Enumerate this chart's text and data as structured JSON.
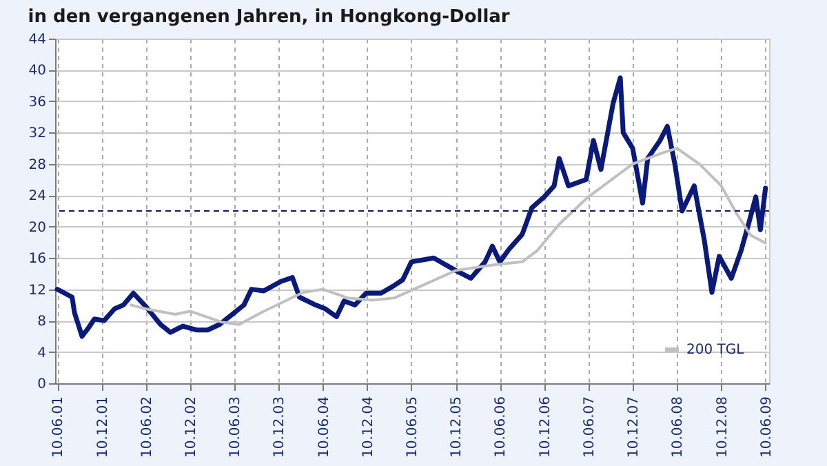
{
  "chart_data": {
    "type": "line",
    "title": "in den vergangenen Jahren, in Hongkong-Dollar",
    "series": [
      {
        "color": "#0a1a7a",
        "x": [
          "2001-06-10",
          "2001-08-10",
          "2001-08-20",
          "2001-09-20",
          "2001-10-15",
          "2001-11-10",
          "2001-12-20",
          "2002-02-01",
          "2002-03-10",
          "2002-04-20",
          "2002-06-10",
          "2002-08-10",
          "2002-09-20",
          "2002-11-10",
          "2003-01-05",
          "2003-02-20",
          "2003-04-10",
          "2003-06-10",
          "2003-07-20",
          "2003-08-20",
          "2003-10-10",
          "2003-12-20",
          "2004-02-05",
          "2004-03-05",
          "2004-05-10",
          "2004-06-20",
          "2004-08-05",
          "2004-09-05",
          "2004-10-20",
          "2004-12-05",
          "2005-02-05",
          "2005-04-01",
          "2005-05-05",
          "2005-06-10",
          "2005-09-10",
          "2005-12-10",
          "2006-02-10",
          "2006-04-10",
          "2006-05-10",
          "2006-06-10",
          "2006-07-20",
          "2006-09-10",
          "2006-10-20",
          "2006-12-10",
          "2007-01-20",
          "2007-02-10",
          "2007-03-20",
          "2007-06-01",
          "2007-07-01",
          "2007-08-01",
          "2007-09-20",
          "2007-10-20",
          "2007-11-01",
          "2007-12-10",
          "2008-01-20",
          "2008-02-10",
          "2008-04-01",
          "2008-05-01",
          "2008-06-01",
          "2008-07-01",
          "2008-08-20",
          "2008-10-01",
          "2008-11-01",
          "2008-12-01",
          "2009-01-20",
          "2009-03-01",
          "2009-04-01",
          "2009-05-01",
          "2009-05-20",
          "2009-06-10"
        ],
        "values": [
          12,
          11,
          9,
          6,
          7,
          8.2,
          8,
          9.5,
          10,
          11.5,
          9.8,
          7.5,
          6.5,
          7.3,
          6.8,
          6.8,
          7.5,
          9,
          10,
          12,
          11.8,
          13,
          13.5,
          11,
          10,
          9.5,
          8.5,
          10.5,
          10,
          11.5,
          11.5,
          12.5,
          13.2,
          15.5,
          16,
          14.4,
          13.4,
          15.5,
          17.5,
          15.5,
          17.2,
          19,
          22.4,
          23.8,
          25.2,
          28.7,
          25.2,
          26,
          31,
          27.3,
          35.7,
          39,
          32,
          30,
          23,
          28.7,
          31,
          32.8,
          28,
          22,
          25.2,
          18.2,
          11.6,
          16.2,
          13.4,
          16.9,
          20.3,
          23.8,
          19.6,
          24.9
        ]
      },
      {
        "name": "200 TGL",
        "color": "#c0c0c0",
        "x": [
          "2002-04-10",
          "2002-06-10",
          "2002-10-10",
          "2002-12-10",
          "2003-04-20",
          "2003-06-30",
          "2003-10-10",
          "2004-03-20",
          "2004-06-10",
          "2004-09-20",
          "2005-01-01",
          "2005-04-01",
          "2005-08-10",
          "2005-12-10",
          "2006-05-10",
          "2006-09-10",
          "2006-11-10",
          "2007-02-10",
          "2007-06-10",
          "2007-09-10",
          "2007-12-10",
          "2008-04-10",
          "2008-06-10",
          "2008-09-10",
          "2008-12-10",
          "2009-02-10",
          "2009-04-10",
          "2009-06-10"
        ],
        "values": [
          10,
          9.5,
          8.8,
          9.2,
          7.8,
          7.5,
          9.2,
          11.6,
          12,
          10.9,
          10.6,
          10.9,
          12.7,
          14.4,
          15.1,
          15.5,
          16.9,
          20.3,
          23.8,
          25.9,
          28,
          29.4,
          30,
          28,
          25.2,
          21.7,
          18.9,
          17.9
        ]
      }
    ],
    "xlim": [
      "2001-06-01",
      "2009-06-25"
    ],
    "xticks": [
      {
        "value": "2001-06-10",
        "label": "10.06.01"
      },
      {
        "value": "2001-12-10",
        "label": "10.12.01"
      },
      {
        "value": "2002-06-10",
        "label": "10.06.02"
      },
      {
        "value": "2002-12-10",
        "label": "10.12.02"
      },
      {
        "value": "2003-06-10",
        "label": "10.06.03"
      },
      {
        "value": "2003-12-10",
        "label": "10.12.03"
      },
      {
        "value": "2004-06-10",
        "label": "10.06.04"
      },
      {
        "value": "2004-12-10",
        "label": "10.12.04"
      },
      {
        "value": "2005-06-10",
        "label": "10.06.05"
      },
      {
        "value": "2005-12-10",
        "label": "10.12.05"
      },
      {
        "value": "2006-06-10",
        "label": "10.06.06"
      },
      {
        "value": "2006-12-10",
        "label": "10.12.06"
      },
      {
        "value": "2007-06-10",
        "label": "10.06.07"
      },
      {
        "value": "2007-12-10",
        "label": "10.12.07"
      },
      {
        "value": "2008-06-10",
        "label": "10.06.08"
      },
      {
        "value": "2008-12-10",
        "label": "10.12.08"
      },
      {
        "value": "2009-06-10",
        "label": "10.06.09"
      }
    ],
    "ylim": [
      0,
      44
    ],
    "yticks": [
      0,
      4,
      8,
      12,
      16,
      20,
      24,
      28,
      32,
      36,
      40,
      44
    ],
    "ref_lines": [
      {
        "axis": "y",
        "value": 22,
        "color": "#0a1a5a",
        "line_style": "dashed"
      }
    ],
    "grid": true,
    "legend": "bottom right",
    "line_style": "solid",
    "marker": "none"
  }
}
